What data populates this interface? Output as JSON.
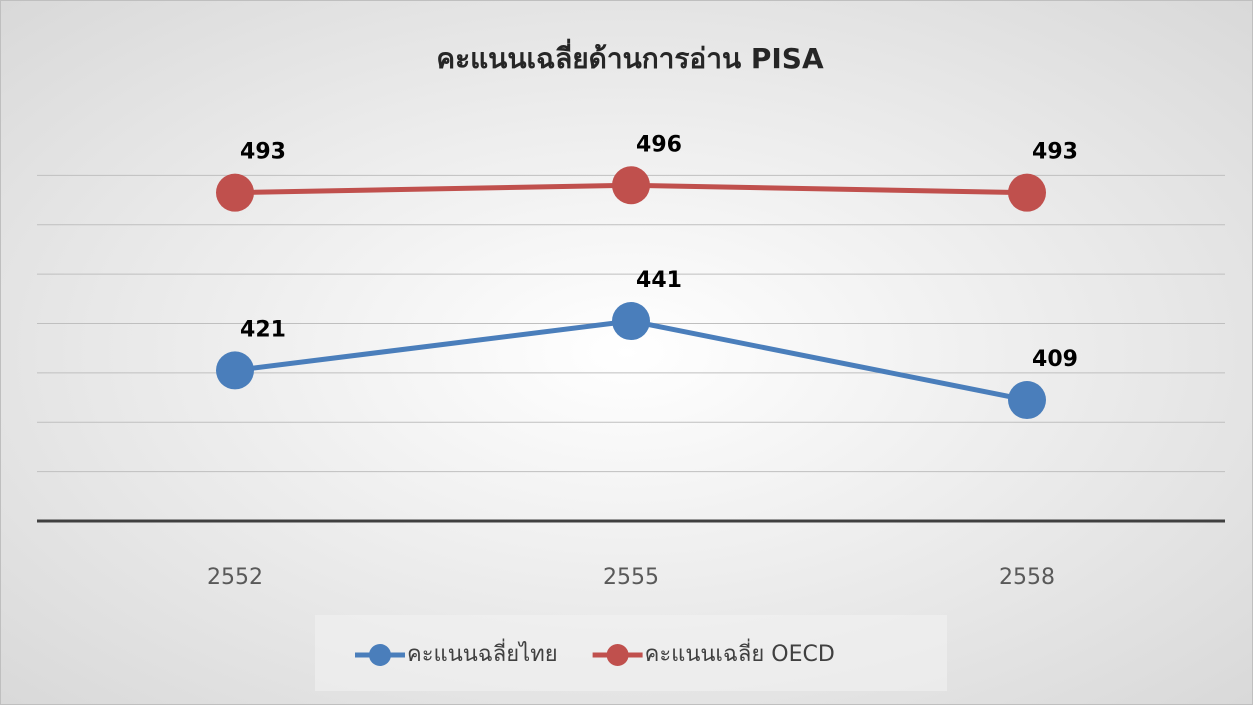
{
  "chart_data": {
    "type": "line",
    "title": "คะแนนเฉลี่ยด้านการอ่าน PISA",
    "categories": [
      "2552",
      "2555",
      "2558"
    ],
    "series": [
      {
        "name": "คะแนนฉลี่ยไทย",
        "color": "#4a7ebb",
        "values": [
          421,
          441,
          409
        ]
      },
      {
        "name": "คะแนนเฉลี่ย OECD",
        "color": "#c0504d",
        "values": [
          493,
          496,
          493
        ]
      }
    ],
    "ylim": [
      360,
      520
    ],
    "yticks": [
      360,
      380,
      400,
      420,
      440,
      460,
      480,
      500
    ],
    "grid": true,
    "legend": "bottom"
  }
}
